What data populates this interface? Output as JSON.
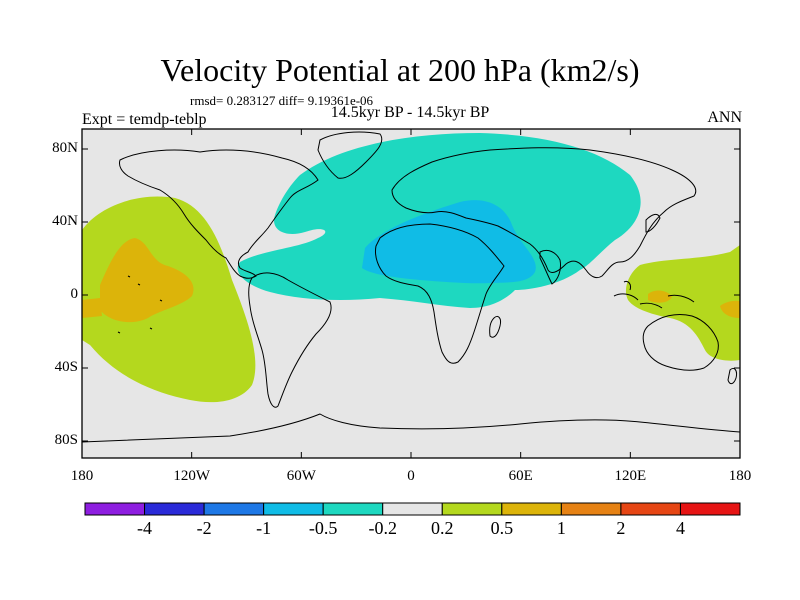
{
  "title": "Velocity Potential at 200 hPa (km2/s)",
  "stats": "rmsd= 0.283127 diff= 9.19361e-06",
  "experiment": "Expt = temdp-teblp",
  "period": "14.5kyr BP - 14.5kyr BP",
  "season": "ANN",
  "lat_labels": [
    "80N",
    "40N",
    "0",
    "40S",
    "80S"
  ],
  "lon_labels": [
    "180",
    "120W",
    "60W",
    "0",
    "60E",
    "120E",
    "180"
  ],
  "colorbar": {
    "colors": [
      "#8e1ee0",
      "#2a2ad8",
      "#1e78e6",
      "#10bce6",
      "#1ed8c0",
      "#e6e6e6",
      "#b4d81e",
      "#dcb40a",
      "#e68214",
      "#e64614",
      "#e61414"
    ],
    "labels": [
      "-4",
      "-2",
      "-1",
      "-0.5",
      "-0.2",
      "0.2",
      "0.5",
      "1",
      "2",
      "4"
    ]
  },
  "regions": [
    {
      "name": "positive-pacific",
      "color": "#b4d81e"
    },
    {
      "name": "positive-pacific-core",
      "color": "#dcb40a"
    },
    {
      "name": "negative-eurasia",
      "color": "#1ed8c0"
    },
    {
      "name": "negative-africa-core",
      "color": "#10bce6"
    },
    {
      "name": "positive-maritime",
      "color": "#b4d81e"
    },
    {
      "name": "positive-maritime-core",
      "color": "#dcb40a"
    }
  ]
}
